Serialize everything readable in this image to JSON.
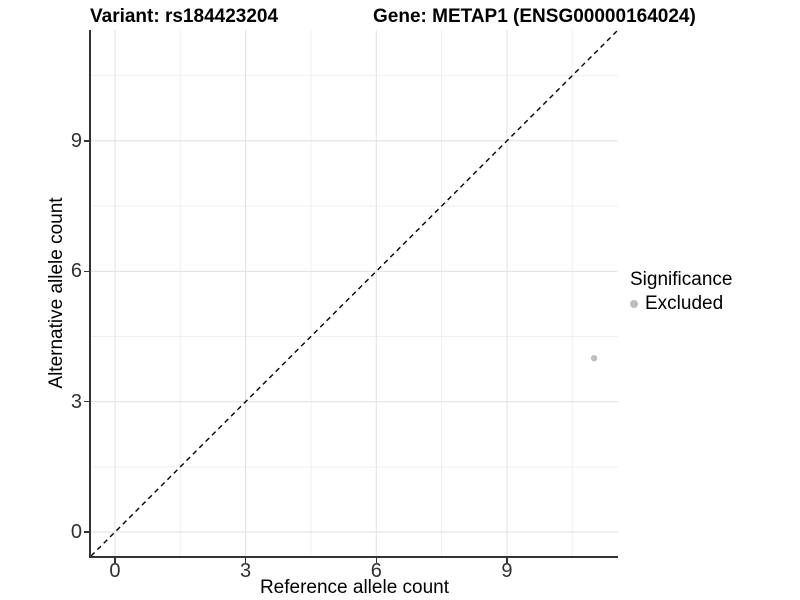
{
  "chart_data": {
    "type": "scatter",
    "titles": [
      "Variant: rs184423204",
      "Gene: METAP1 (ENSG00000164024)"
    ],
    "xlabel": "Reference allele count",
    "ylabel": "Alternative allele count",
    "x_ticks": [
      0,
      3,
      6,
      9
    ],
    "y_ticks": [
      0,
      3,
      6,
      9
    ],
    "x_minor_ticks": [
      1.5,
      4.5,
      7.5,
      10.5
    ],
    "y_minor_ticks": [
      1.5,
      4.5,
      7.5,
      10.5
    ],
    "xlim": [
      -0.55,
      11.55
    ],
    "ylim": [
      -0.55,
      11.55
    ],
    "grid": "major+minor",
    "legend_position": "right",
    "series": [
      {
        "name": "Excluded",
        "color": "#bebebe",
        "points": [
          {
            "x": 11,
            "y": 4
          }
        ]
      }
    ],
    "reference_line": {
      "kind": "identity y=x",
      "style": "dashed",
      "color": "#000000"
    },
    "legend": {
      "title": "Significance",
      "entries": [
        {
          "label": "Excluded",
          "color": "#bebebe"
        }
      ]
    }
  }
}
